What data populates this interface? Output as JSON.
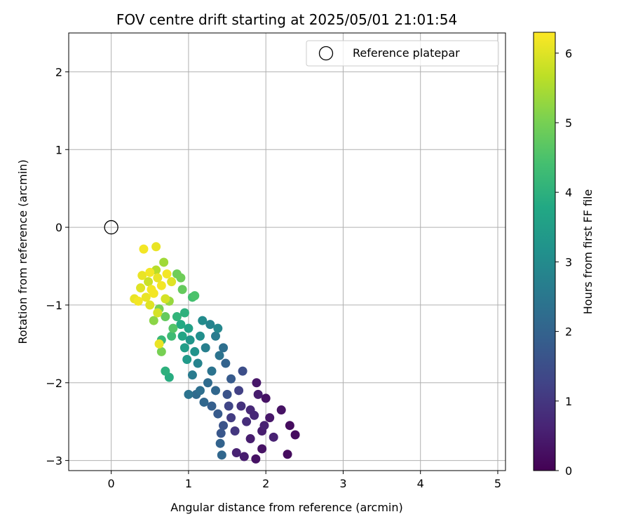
{
  "chart_data": {
    "type": "scatter",
    "title": "FOV centre drift starting at 2025/05/01 21:01:54",
    "xlabel": "Angular distance from reference (arcmin)",
    "ylabel": "Rotation from reference (arcmin)",
    "xlim": [
      -0.55,
      5.1
    ],
    "ylim": [
      -3.13,
      2.5
    ],
    "xticks": [
      0,
      1,
      2,
      3,
      4,
      5
    ],
    "yticks": [
      -3,
      -2,
      -1,
      0,
      1,
      2
    ],
    "grid": true,
    "legend": {
      "position": "top-right",
      "entries": [
        "Reference platepar"
      ]
    },
    "reference_point": {
      "x": 0,
      "y": 0,
      "label": "Reference platepar"
    },
    "colorbar": {
      "label": "Hours from first FF file",
      "min": 0,
      "max": 6.3,
      "ticks": [
        0,
        1,
        2,
        3,
        4,
        5,
        6
      ],
      "colormap": "viridis"
    },
    "series": [
      {
        "points": [
          {
            "x": 2.28,
            "y": -2.92,
            "t": 0.2
          },
          {
            "x": 1.87,
            "y": -2.98,
            "t": 0.3
          },
          {
            "x": 1.95,
            "y": -2.85,
            "t": 0.3
          },
          {
            "x": 2.38,
            "y": -2.67,
            "t": 0.2
          },
          {
            "x": 2.31,
            "y": -2.55,
            "t": 0.2
          },
          {
            "x": 2.2,
            "y": -2.35,
            "t": 0.3
          },
          {
            "x": 2.0,
            "y": -2.2,
            "t": 0.3
          },
          {
            "x": 1.88,
            "y": -2.0,
            "t": 0.4
          },
          {
            "x": 1.95,
            "y": -2.62,
            "t": 0.5
          },
          {
            "x": 1.62,
            "y": -2.9,
            "t": 0.6
          },
          {
            "x": 1.72,
            "y": -2.95,
            "t": 0.5
          },
          {
            "x": 1.8,
            "y": -2.72,
            "t": 0.5
          },
          {
            "x": 2.05,
            "y": -2.45,
            "t": 0.4
          },
          {
            "x": 1.9,
            "y": -2.15,
            "t": 0.5
          },
          {
            "x": 1.8,
            "y": -2.35,
            "t": 0.7
          },
          {
            "x": 2.1,
            "y": -2.7,
            "t": 0.6
          },
          {
            "x": 1.75,
            "y": -2.5,
            "t": 0.8
          },
          {
            "x": 1.68,
            "y": -2.3,
            "t": 0.9
          },
          {
            "x": 1.6,
            "y": -2.62,
            "t": 1.0
          },
          {
            "x": 1.98,
            "y": -2.55,
            "t": 0.6
          },
          {
            "x": 1.85,
            "y": -2.42,
            "t": 0.7
          },
          {
            "x": 1.55,
            "y": -2.45,
            "t": 1.1
          },
          {
            "x": 1.52,
            "y": -2.3,
            "t": 1.3
          },
          {
            "x": 1.65,
            "y": -2.1,
            "t": 1.2
          },
          {
            "x": 1.7,
            "y": -1.85,
            "t": 1.5
          },
          {
            "x": 1.45,
            "y": -2.55,
            "t": 1.6
          },
          {
            "x": 1.42,
            "y": -2.65,
            "t": 1.7
          },
          {
            "x": 1.5,
            "y": -2.15,
            "t": 1.6
          },
          {
            "x": 1.38,
            "y": -2.4,
            "t": 1.8
          },
          {
            "x": 1.3,
            "y": -2.3,
            "t": 1.9
          },
          {
            "x": 1.55,
            "y": -1.95,
            "t": 1.8
          },
          {
            "x": 1.48,
            "y": -1.75,
            "t": 2.0
          },
          {
            "x": 1.41,
            "y": -2.78,
            "t": 2.0
          },
          {
            "x": 1.43,
            "y": -2.93,
            "t": 2.1
          },
          {
            "x": 1.35,
            "y": -2.1,
            "t": 2.1
          },
          {
            "x": 1.25,
            "y": -2.0,
            "t": 2.2
          },
          {
            "x": 1.2,
            "y": -2.25,
            "t": 2.1
          },
          {
            "x": 1.15,
            "y": -2.1,
            "t": 2.3
          },
          {
            "x": 1.1,
            "y": -2.15,
            "t": 2.2
          },
          {
            "x": 1.0,
            "y": -2.15,
            "t": 2.4
          },
          {
            "x": 1.3,
            "y": -1.85,
            "t": 2.4
          },
          {
            "x": 1.4,
            "y": -1.65,
            "t": 2.4
          },
          {
            "x": 1.45,
            "y": -1.55,
            "t": 2.3
          },
          {
            "x": 1.35,
            "y": -1.4,
            "t": 2.6
          },
          {
            "x": 1.22,
            "y": -1.55,
            "t": 2.7
          },
          {
            "x": 1.28,
            "y": -1.25,
            "t": 2.8
          },
          {
            "x": 1.38,
            "y": -1.3,
            "t": 2.9
          },
          {
            "x": 1.18,
            "y": -1.2,
            "t": 3.0
          },
          {
            "x": 1.12,
            "y": -1.75,
            "t": 2.8
          },
          {
            "x": 1.05,
            "y": -1.9,
            "t": 2.6
          },
          {
            "x": 1.15,
            "y": -1.4,
            "t": 3.1
          },
          {
            "x": 1.08,
            "y": -1.6,
            "t": 3.2
          },
          {
            "x": 1.02,
            "y": -1.45,
            "t": 3.3
          },
          {
            "x": 0.98,
            "y": -1.7,
            "t": 3.4
          },
          {
            "x": 0.95,
            "y": -1.55,
            "t": 3.5
          },
          {
            "x": 1.0,
            "y": -1.3,
            "t": 3.6
          },
          {
            "x": 0.92,
            "y": -1.4,
            "t": 3.7
          },
          {
            "x": 0.9,
            "y": -1.25,
            "t": 3.8
          },
          {
            "x": 0.95,
            "y": -1.1,
            "t": 4.0
          },
          {
            "x": 0.85,
            "y": -1.15,
            "t": 4.1
          },
          {
            "x": 1.05,
            "y": -0.9,
            "t": 4.4
          },
          {
            "x": 1.08,
            "y": -0.88,
            "t": 4.5
          },
          {
            "x": 0.7,
            "y": -1.85,
            "t": 4.0
          },
          {
            "x": 0.75,
            "y": -1.93,
            "t": 3.9
          },
          {
            "x": 0.78,
            "y": -1.4,
            "t": 4.3
          },
          {
            "x": 0.65,
            "y": -1.45,
            "t": 4.2
          },
          {
            "x": 0.8,
            "y": -1.3,
            "t": 4.6
          },
          {
            "x": 0.7,
            "y": -1.15,
            "t": 4.8
          },
          {
            "x": 0.62,
            "y": -1.05,
            "t": 5.0
          },
          {
            "x": 0.55,
            "y": -1.2,
            "t": 5.2
          },
          {
            "x": 0.65,
            "y": -1.6,
            "t": 5.0
          },
          {
            "x": 0.85,
            "y": -0.6,
            "t": 4.9
          },
          {
            "x": 0.9,
            "y": -0.65,
            "t": 4.9
          },
          {
            "x": 0.92,
            "y": -0.8,
            "t": 4.8
          },
          {
            "x": 0.75,
            "y": -0.95,
            "t": 5.3
          },
          {
            "x": 0.68,
            "y": -0.45,
            "t": 5.4
          },
          {
            "x": 0.58,
            "y": -0.55,
            "t": 5.6
          },
          {
            "x": 0.48,
            "y": -0.7,
            "t": 5.8
          },
          {
            "x": 0.38,
            "y": -0.78,
            "t": 6.0
          },
          {
            "x": 0.3,
            "y": -0.92,
            "t": 6.1
          },
          {
            "x": 0.35,
            "y": -0.95,
            "t": 6.2
          },
          {
            "x": 0.45,
            "y": -0.9,
            "t": 6.1
          },
          {
            "x": 0.52,
            "y": -0.8,
            "t": 6.2
          },
          {
            "x": 0.6,
            "y": -0.65,
            "t": 6.1
          },
          {
            "x": 0.72,
            "y": -0.6,
            "t": 6.2
          },
          {
            "x": 0.78,
            "y": -0.7,
            "t": 6.0
          },
          {
            "x": 0.42,
            "y": -0.28,
            "t": 6.2
          },
          {
            "x": 0.58,
            "y": -0.25,
            "t": 6.1
          },
          {
            "x": 0.5,
            "y": -1.0,
            "t": 6.0
          },
          {
            "x": 0.6,
            "y": -1.1,
            "t": 5.9
          },
          {
            "x": 0.55,
            "y": -0.85,
            "t": 6.2
          },
          {
            "x": 0.65,
            "y": -0.75,
            "t": 6.2
          },
          {
            "x": 0.7,
            "y": -0.92,
            "t": 5.9
          },
          {
            "x": 0.62,
            "y": -1.5,
            "t": 6.1
          },
          {
            "x": 0.4,
            "y": -0.62,
            "t": 6.1
          },
          {
            "x": 0.5,
            "y": -0.58,
            "t": 6.2
          }
        ]
      }
    ]
  }
}
